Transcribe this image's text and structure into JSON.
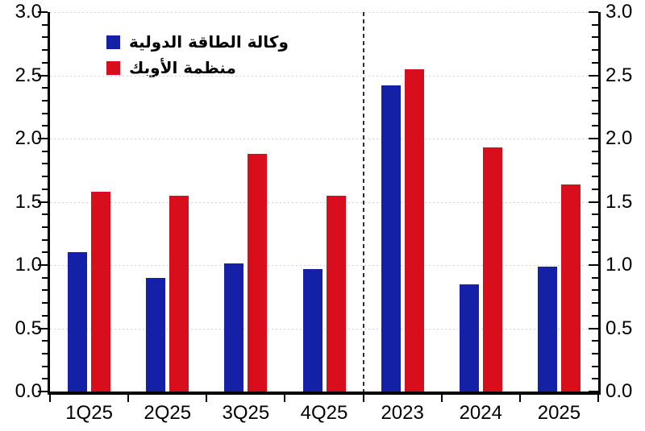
{
  "chart_data": {
    "type": "bar",
    "title": "",
    "categories": [
      "1Q25",
      "2Q25",
      "3Q25",
      "4Q25",
      "2023",
      "2024",
      "2025"
    ],
    "series": [
      {
        "name": "وكالة الطاقة الدولية",
        "color": "#1421a6",
        "values": [
          1.1,
          0.9,
          1.01,
          0.97,
          2.42,
          0.85,
          0.99
        ]
      },
      {
        "name": "منظمة الأوبك",
        "color": "#d90e1d",
        "values": [
          1.58,
          1.55,
          1.88,
          1.55,
          2.55,
          1.93,
          1.64
        ]
      }
    ],
    "ylim": [
      0,
      3.0
    ],
    "y_major_step": 0.5,
    "y_minor_step": 0.1,
    "y_tick_labels": [
      "3.0",
      "2.5",
      "2.0",
      "1.5",
      "1.0",
      "0.5",
      "0.0"
    ],
    "y_axis_sides": "both",
    "grid": "dotted horizontal lines at each major tick",
    "legend_position": "inside top-left",
    "divider_after_category": "4Q25",
    "axis_color": "#000000",
    "gridline_color": "#d2d2d2",
    "divider_color": "#2e2e2e"
  }
}
